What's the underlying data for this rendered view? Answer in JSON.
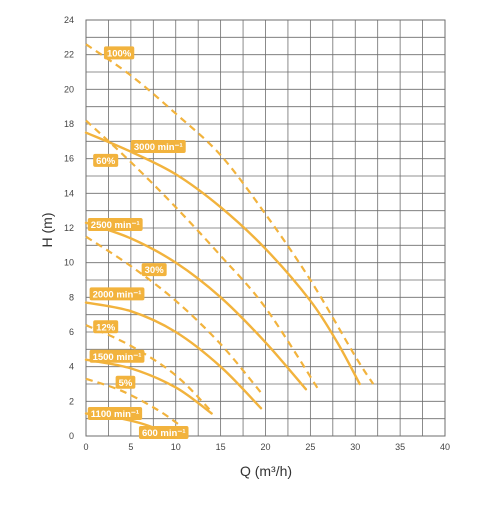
{
  "chart_data": {
    "type": "line",
    "title": "",
    "xlabel": "Q (m³/h)",
    "ylabel": "H (m)",
    "xlim": [
      0,
      40
    ],
    "ylim": [
      0,
      24
    ],
    "x_ticks": [
      0,
      5,
      10,
      15,
      20,
      25,
      30,
      35,
      40
    ],
    "y_ticks": [
      0,
      2,
      4,
      6,
      8,
      10,
      12,
      14,
      16,
      18,
      20,
      22,
      24
    ],
    "grid": true,
    "colors": {
      "curve": "#F2B33D",
      "label_bg": "#F2B33D",
      "grid": "#6e6e6e"
    },
    "speed_curves": [
      {
        "label": "3000 min⁻¹",
        "style": "solid",
        "x": [
          0,
          5,
          10,
          15,
          20,
          25,
          28,
          30.5
        ],
        "y": [
          17.5,
          16.4,
          15.1,
          13.2,
          10.8,
          7.8,
          5.4,
          3.0
        ]
      },
      {
        "label": "2500 min⁻¹",
        "style": "solid",
        "x": [
          0,
          5,
          10,
          15,
          20,
          24.5
        ],
        "y": [
          12.3,
          11.4,
          10.0,
          8.0,
          5.4,
          2.7
        ]
      },
      {
        "label": "2000 min⁻¹",
        "style": "solid",
        "x": [
          0,
          5,
          10,
          15,
          19.5
        ],
        "y": [
          7.7,
          7.2,
          6.0,
          4.0,
          1.6
        ]
      },
      {
        "label": "1500 min⁻¹",
        "style": "solid",
        "x": [
          0,
          5,
          10,
          14
        ],
        "y": [
          4.4,
          3.9,
          2.8,
          1.3
        ]
      },
      {
        "label": "1100 min⁻¹",
        "style": "solid",
        "x": [
          0,
          3,
          6,
          8.5
        ],
        "y": [
          1.3,
          1.1,
          0.75,
          0.3
        ]
      }
    ],
    "efficiency_curves": [
      {
        "label": "100%",
        "style": "dashed",
        "x": [
          0,
          5,
          10,
          15,
          20,
          25,
          30,
          32
        ],
        "y": [
          22.6,
          20.8,
          18.6,
          16.2,
          12.8,
          9.0,
          4.6,
          3.0
        ]
      },
      {
        "label": "60%",
        "style": "dashed",
        "x": [
          0,
          5,
          10,
          15,
          20,
          26
        ],
        "y": [
          18.2,
          15.8,
          13.2,
          10.4,
          7.4,
          2.6
        ]
      },
      {
        "label": "30%",
        "style": "dashed",
        "x": [
          0,
          5,
          10,
          15,
          19.5
        ],
        "y": [
          11.5,
          9.8,
          7.8,
          5.3,
          2.5
        ]
      },
      {
        "label": "12%",
        "style": "dashed",
        "x": [
          0,
          5,
          10,
          14
        ],
        "y": [
          6.4,
          5.2,
          3.5,
          1.4
        ]
      },
      {
        "label": "5%",
        "style": "dashed",
        "x": [
          0,
          4,
          8,
          10.5
        ],
        "y": [
          3.3,
          2.6,
          1.5,
          0.6
        ]
      }
    ],
    "label_placements": [
      {
        "text": "100%",
        "x": 2.0,
        "y": 22.1
      },
      {
        "text": "3000 min⁻¹",
        "x": 5.0,
        "y": 16.7
      },
      {
        "text": "60%",
        "x": 0.8,
        "y": 15.9
      },
      {
        "text": "2500 min⁻¹",
        "x": 0.2,
        "y": 12.2
      },
      {
        "text": "30%",
        "x": 6.2,
        "y": 9.6
      },
      {
        "text": "2000 min⁻¹",
        "x": 0.4,
        "y": 8.2
      },
      {
        "text": "12%",
        "x": 0.8,
        "y": 6.3
      },
      {
        "text": "1500 min⁻¹",
        "x": 0.4,
        "y": 4.6
      },
      {
        "text": "5%",
        "x": 3.3,
        "y": 3.1
      },
      {
        "text": "1100 min⁻¹",
        "x": 0.2,
        "y": 1.3
      },
      {
        "text": "600 min⁻¹",
        "x": 5.9,
        "y": 0.2
      }
    ]
  }
}
